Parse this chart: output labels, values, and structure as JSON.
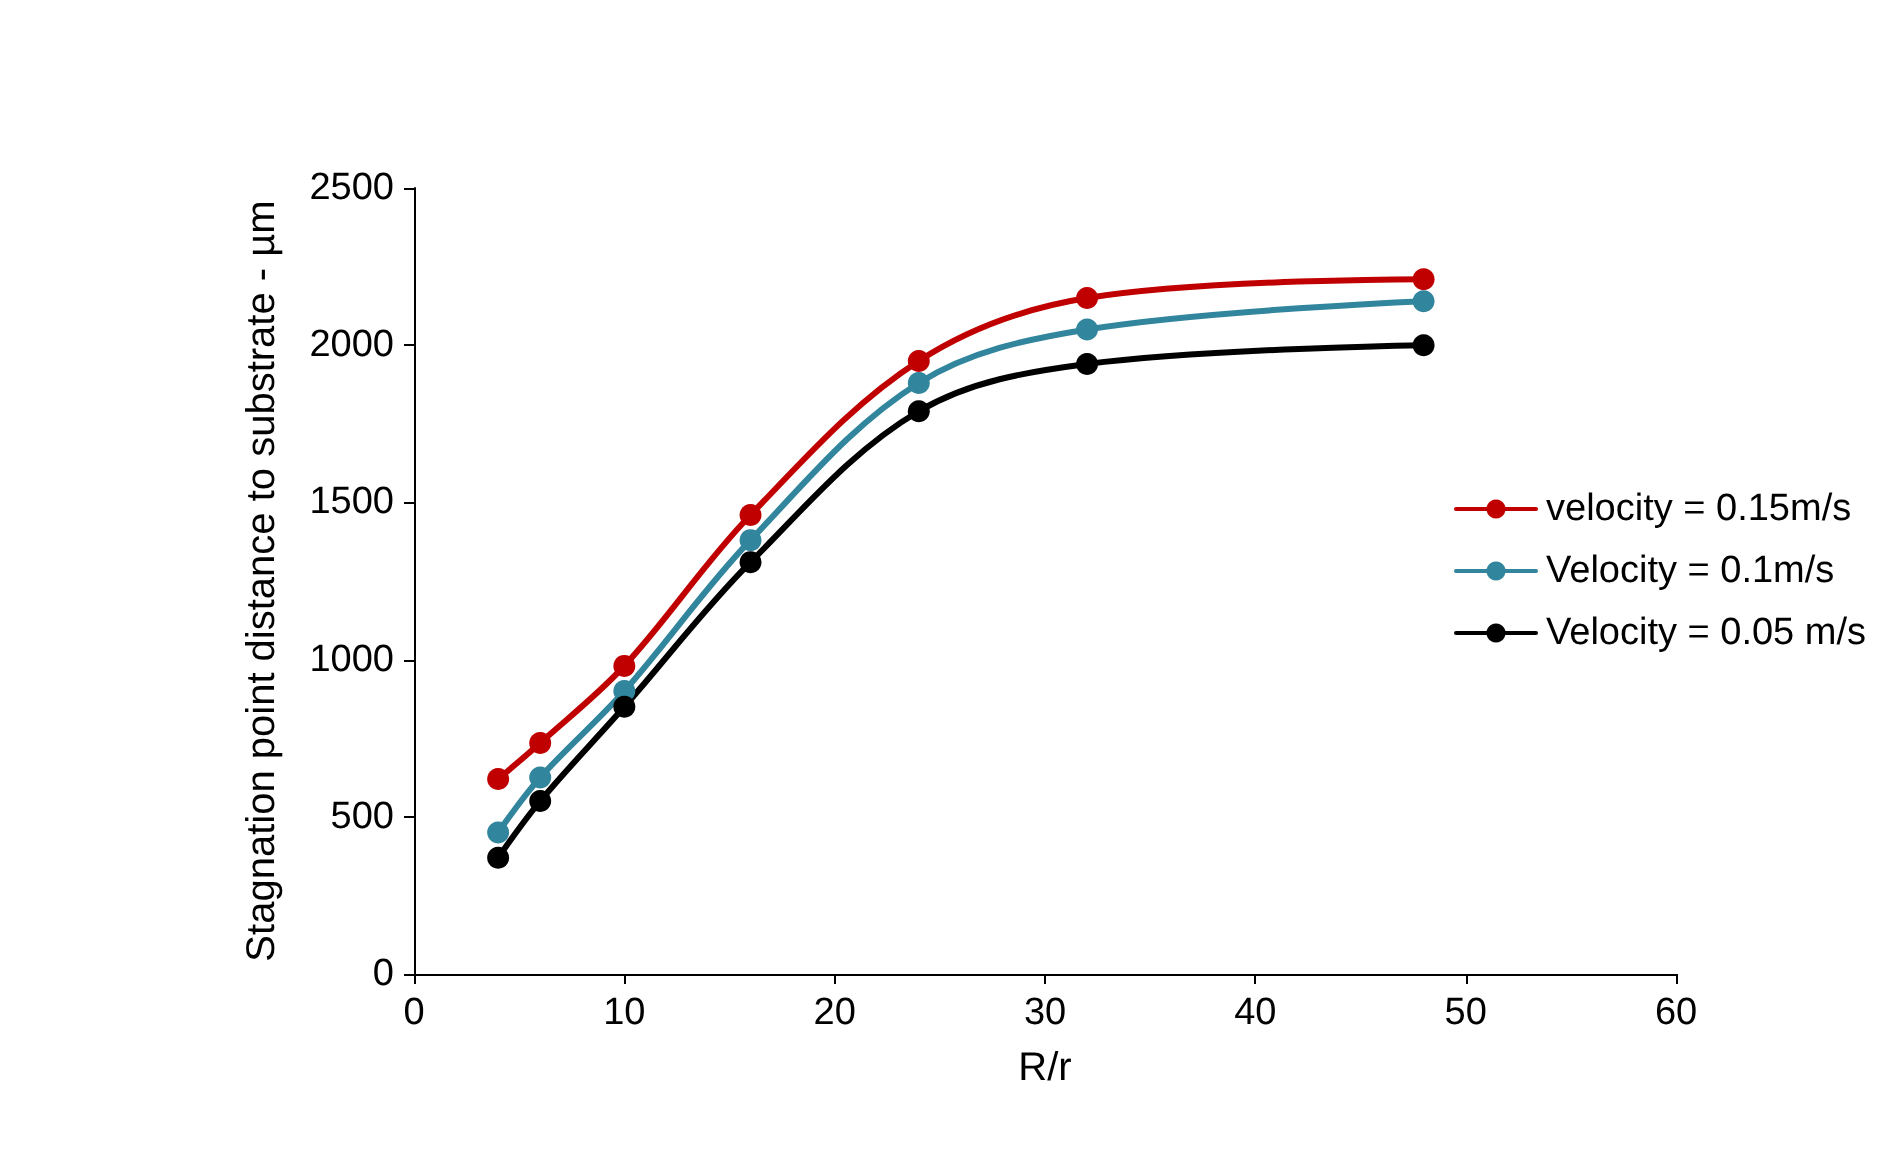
{
  "chart_data": {
    "type": "line",
    "xlabel": "R/r",
    "ylabel": "Stagnation point distance to substrate - µm",
    "x": [
      4,
      6,
      10,
      16,
      24,
      32,
      48
    ],
    "series": [
      {
        "name": "velocity = 0.15m/s",
        "color": "#c00000",
        "values": [
          620,
          735,
          980,
          1460,
          1950,
          2150,
          2210
        ]
      },
      {
        "name": "Velocity = 0.1m/s",
        "color": "#31859c",
        "values": [
          450,
          625,
          900,
          1380,
          1880,
          2050,
          2140
        ]
      },
      {
        "name": "Velocity = 0.05 m/s",
        "color": "#000000",
        "values": [
          370,
          550,
          850,
          1310,
          1790,
          1940,
          2000
        ]
      }
    ],
    "xlim": [
      0,
      60
    ],
    "xticks": [
      0,
      10,
      20,
      30,
      40,
      50,
      60
    ],
    "ylim": [
      0,
      2500
    ],
    "yticks": [
      0,
      500,
      1000,
      1500,
      2000,
      2500
    ],
    "grid": false,
    "legend": "right",
    "marker": "circle",
    "line_style": "solid"
  }
}
